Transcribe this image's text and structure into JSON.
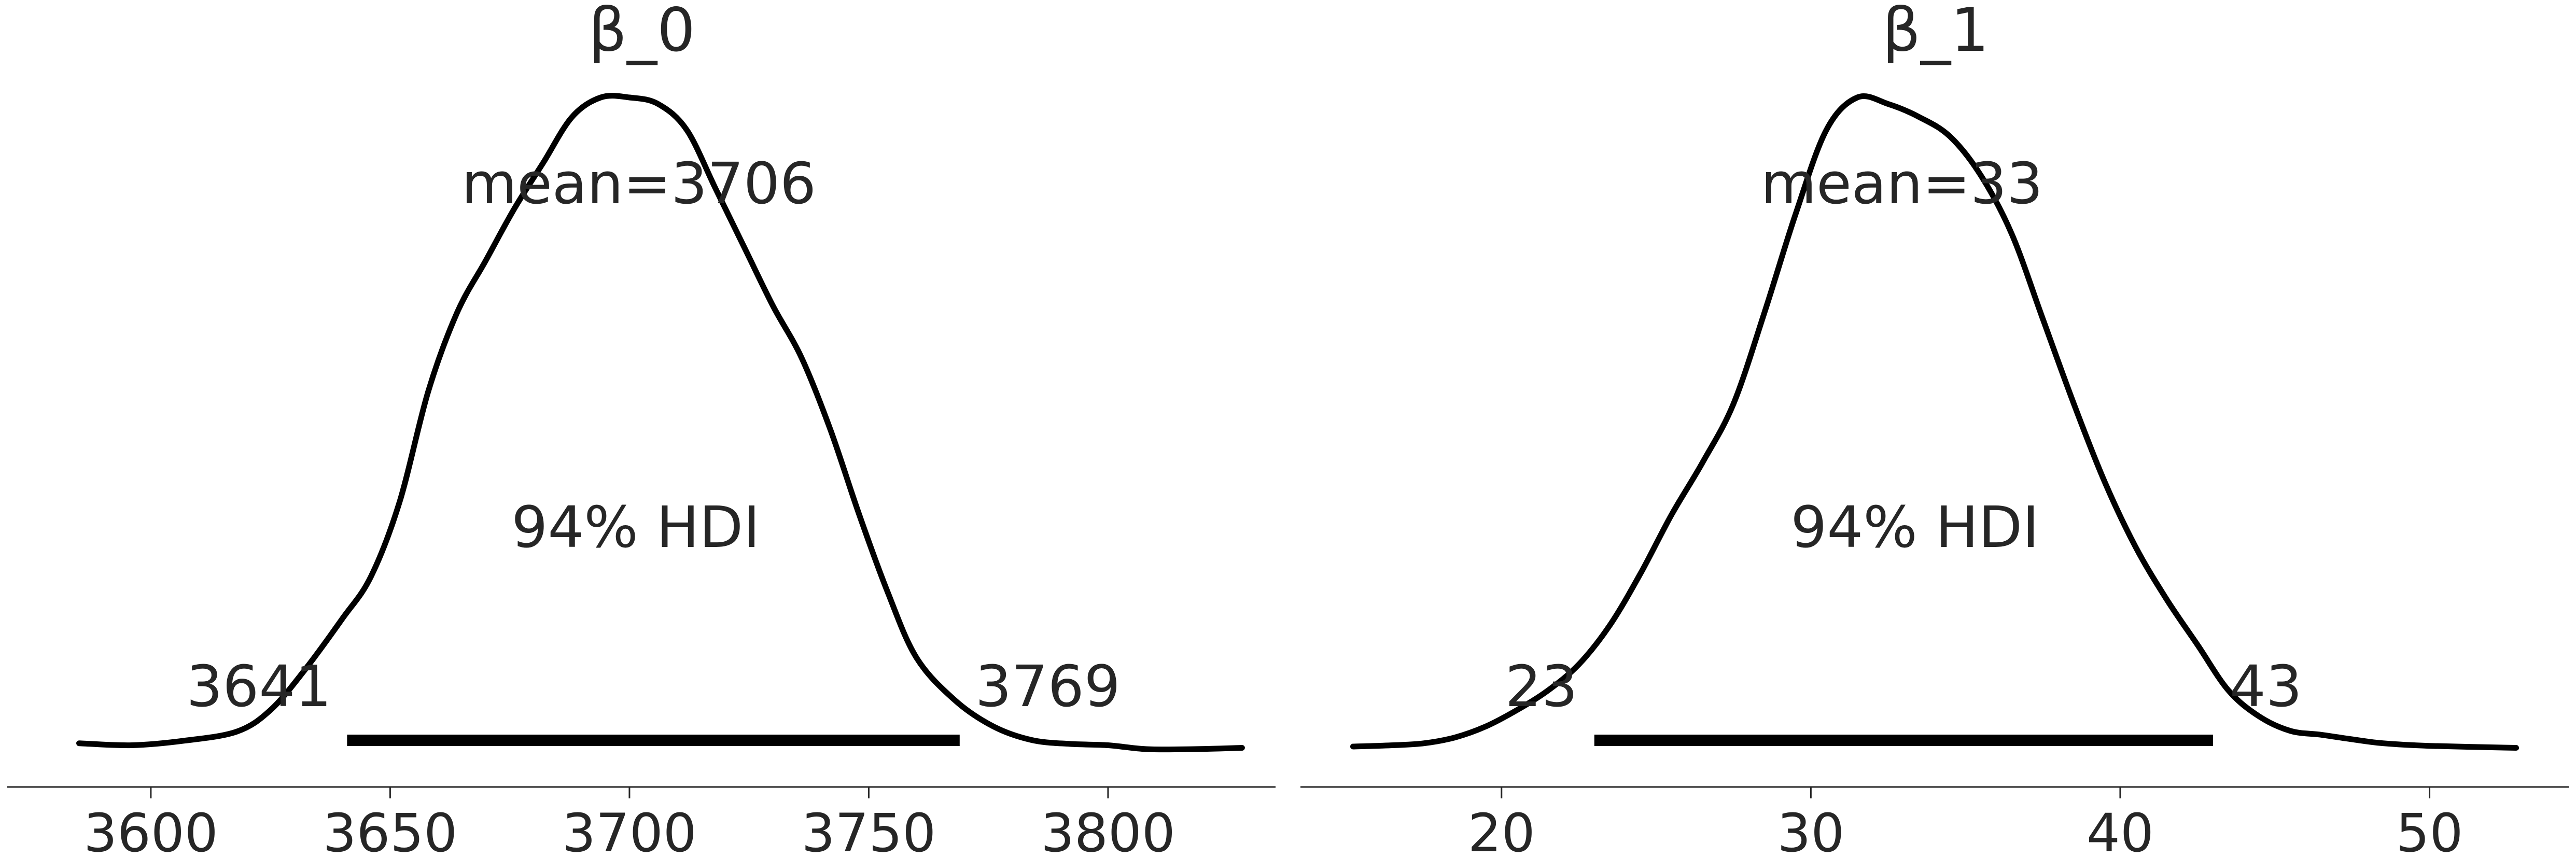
{
  "chart_data": [
    {
      "type": "line",
      "title": "β_0",
      "xlim": [
        3570,
        3835
      ],
      "xticks": [
        3600,
        3650,
        3700,
        3750,
        3800
      ],
      "xtick_labels": [
        "3600",
        "3650",
        "3700",
        "3750",
        "3800"
      ],
      "curve": [
        [
          3585,
          0.009
        ],
        [
          3596,
          0.006
        ],
        [
          3607,
          0.013
        ],
        [
          3618,
          0.027
        ],
        [
          3625,
          0.06
        ],
        [
          3632,
          0.12
        ],
        [
          3640,
          0.2
        ],
        [
          3646,
          0.265
        ],
        [
          3652,
          0.38
        ],
        [
          3658,
          0.55
        ],
        [
          3664,
          0.67
        ],
        [
          3670,
          0.75
        ],
        [
          3676,
          0.83
        ],
        [
          3682,
          0.9
        ],
        [
          3688,
          0.97
        ],
        [
          3694,
          1.0
        ],
        [
          3700,
          1.0
        ],
        [
          3706,
          0.99
        ],
        [
          3712,
          0.95
        ],
        [
          3718,
          0.86
        ],
        [
          3724,
          0.77
        ],
        [
          3730,
          0.68
        ],
        [
          3736,
          0.6
        ],
        [
          3742,
          0.49
        ],
        [
          3748,
          0.36
        ],
        [
          3754,
          0.24
        ],
        [
          3760,
          0.14
        ],
        [
          3768,
          0.075
        ],
        [
          3776,
          0.035
        ],
        [
          3784,
          0.014
        ],
        [
          3792,
          0.008
        ],
        [
          3800,
          0.006
        ],
        [
          3808,
          0.0
        ],
        [
          3818,
          0.0
        ],
        [
          3828,
          0.002
        ]
      ],
      "mean_label": "mean=3706",
      "hdi_label": "94% HDI",
      "hdi": [
        3641,
        3769
      ],
      "hdi_low_label": "3641",
      "hdi_high_label": "3769"
    },
    {
      "type": "line",
      "title": "β_1",
      "xlim": [
        13.5,
        54.5
      ],
      "xticks": [
        20,
        30,
        40,
        50
      ],
      "xtick_labels": [
        "20",
        "30",
        "40",
        "50"
      ],
      "curve": [
        [
          15.2,
          0.004
        ],
        [
          16.5,
          0.006
        ],
        [
          17.5,
          0.009
        ],
        [
          18.5,
          0.018
        ],
        [
          19.5,
          0.035
        ],
        [
          20.5,
          0.06
        ],
        [
          21.5,
          0.09
        ],
        [
          22.5,
          0.13
        ],
        [
          23.5,
          0.19
        ],
        [
          24.5,
          0.27
        ],
        [
          25.5,
          0.36
        ],
        [
          26.5,
          0.44
        ],
        [
          27.5,
          0.53
        ],
        [
          28.5,
          0.67
        ],
        [
          29.5,
          0.82
        ],
        [
          30.5,
          0.95
        ],
        [
          31.5,
          1.0
        ],
        [
          32.5,
          0.99
        ],
        [
          33.5,
          0.97
        ],
        [
          34.5,
          0.94
        ],
        [
          35.5,
          0.88
        ],
        [
          36.5,
          0.79
        ],
        [
          37.5,
          0.66
        ],
        [
          38.5,
          0.53
        ],
        [
          39.5,
          0.41
        ],
        [
          40.5,
          0.31
        ],
        [
          41.5,
          0.23
        ],
        [
          42.5,
          0.16
        ],
        [
          43.5,
          0.09
        ],
        [
          44.5,
          0.05
        ],
        [
          45.5,
          0.028
        ],
        [
          46.5,
          0.022
        ],
        [
          47.5,
          0.015
        ],
        [
          48.5,
          0.009
        ],
        [
          50.0,
          0.005
        ],
        [
          52.8,
          0.002
        ]
      ],
      "mean_label": "mean=33",
      "hdi_label": "94% HDI",
      "hdi": [
        23,
        43
      ],
      "hdi_low_label": "23",
      "hdi_high_label": "43"
    }
  ]
}
